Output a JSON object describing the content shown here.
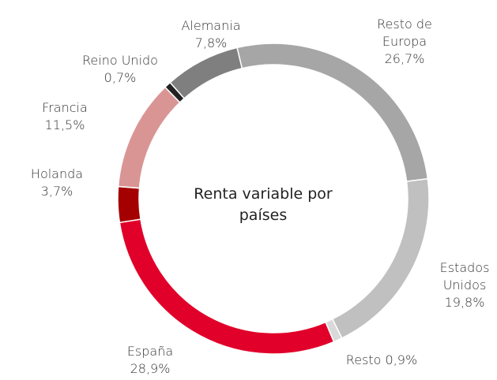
{
  "chart_data": {
    "type": "donut",
    "title": "Renta variable por países",
    "categories": [
      "Resto de Europa",
      "Estados Unidos",
      "Resto",
      "España",
      "Holanda",
      "Francia",
      "Reino Unido",
      "Alemania"
    ],
    "values": [
      26.7,
      19.8,
      0.9,
      28.9,
      3.7,
      11.5,
      0.7,
      7.8
    ],
    "value_labels": [
      "26,7%",
      "19,8%",
      "0,9%",
      "28,9%",
      "3,7%",
      "11,5%",
      "0,7%",
      "7,8%"
    ],
    "colors": [
      "#a6a6a6",
      "#c0c0c0",
      "#d9d9d9",
      "#e0002a",
      "#a50000",
      "#d99594",
      "#222222",
      "#7f7f7f"
    ]
  }
}
